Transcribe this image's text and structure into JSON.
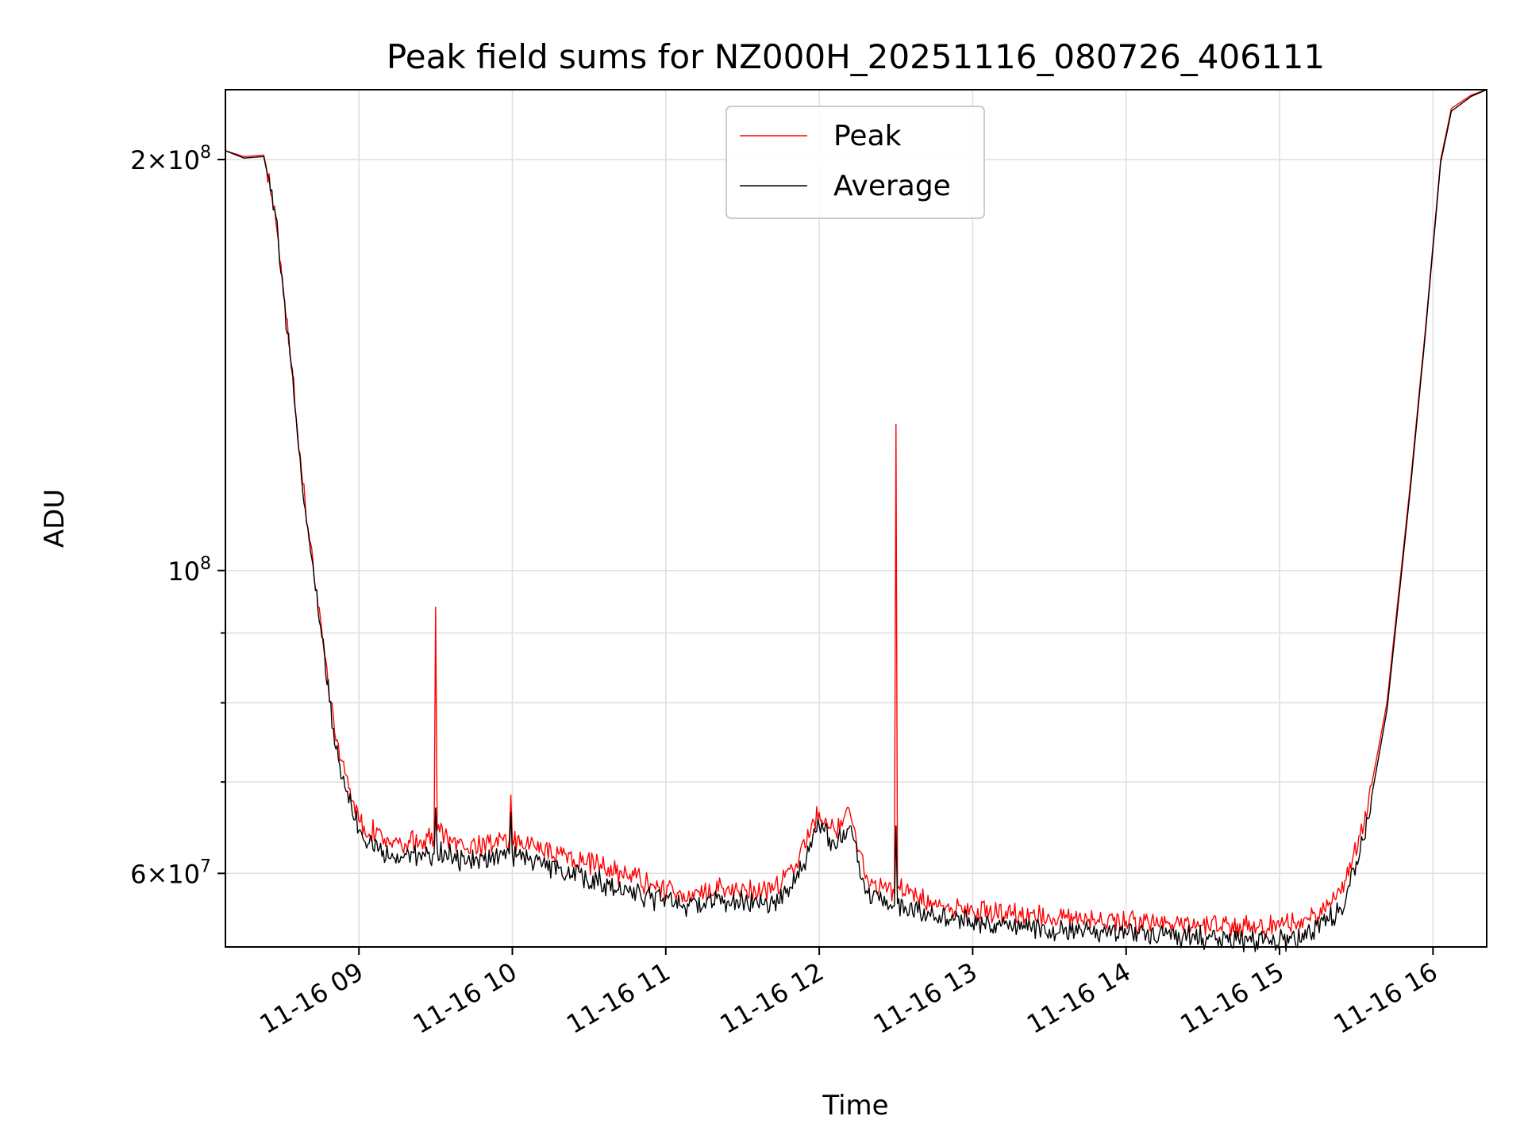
{
  "chart_data": {
    "type": "line",
    "title": "Peak field sums for NZ000H_20251116_080726_406111",
    "xlabel": "Time",
    "ylabel": "ADU",
    "yscale": "log",
    "ylim": [
      53000000,
      225000000
    ],
    "xlim_hours": [
      8.13,
      16.35
    ],
    "grid": true,
    "legend_position": "top-center",
    "x_ticks": [
      {
        "value": 9,
        "label": "11-16 09"
      },
      {
        "value": 10,
        "label": "11-16 10"
      },
      {
        "value": 11,
        "label": "11-16 11"
      },
      {
        "value": 12,
        "label": "11-16 12"
      },
      {
        "value": 13,
        "label": "11-16 13"
      },
      {
        "value": 14,
        "label": "11-16 14"
      },
      {
        "value": 15,
        "label": "11-16 15"
      },
      {
        "value": 16,
        "label": "11-16 16"
      }
    ],
    "y_major_ticks": [
      {
        "value": 60000000,
        "base": "6×10",
        "exp": "7"
      },
      {
        "value": 100000000,
        "base": "10",
        "exp": "8"
      },
      {
        "value": 200000000,
        "base": "2×10",
        "exp": "8"
      }
    ],
    "y_minor_ticks": [
      70000000,
      80000000,
      90000000
    ],
    "series": [
      {
        "name": "Peak",
        "color": "#ff0000",
        "points": [
          [
            8.13,
            203000000
          ],
          [
            8.25,
            201000000
          ],
          [
            8.38,
            201500000
          ],
          [
            8.45,
            185000000
          ],
          [
            8.55,
            145000000
          ],
          [
            8.65,
            112000000
          ],
          [
            8.75,
            92000000
          ],
          [
            8.85,
            75000000
          ],
          [
            9.0,
            65500000
          ],
          [
            9.2,
            63000000
          ],
          [
            9.49,
            63500000
          ],
          [
            9.5,
            94000000
          ],
          [
            9.51,
            64500000
          ],
          [
            9.7,
            62500000
          ],
          [
            9.98,
            63500000
          ],
          [
            9.99,
            68500000
          ],
          [
            10.0,
            63500000
          ],
          [
            10.3,
            62000000
          ],
          [
            10.6,
            60500000
          ],
          [
            10.9,
            59000000
          ],
          [
            11.1,
            58000000
          ],
          [
            11.4,
            58500000
          ],
          [
            11.7,
            58300000
          ],
          [
            11.85,
            61000000
          ],
          [
            12.0,
            66500000
          ],
          [
            12.1,
            64500000
          ],
          [
            12.2,
            66500000
          ],
          [
            12.3,
            59500000
          ],
          [
            12.49,
            58000000
          ],
          [
            12.5,
            128000000
          ],
          [
            12.51,
            58500000
          ],
          [
            12.8,
            56800000
          ],
          [
            13.0,
            56400000
          ],
          [
            13.5,
            55800000
          ],
          [
            14.0,
            55400000
          ],
          [
            14.5,
            55000000
          ],
          [
            15.0,
            54800000
          ],
          [
            15.2,
            55400000
          ],
          [
            15.4,
            58000000
          ],
          [
            15.55,
            65000000
          ],
          [
            15.7,
            80000000
          ],
          [
            15.85,
            115000000
          ],
          [
            15.95,
            150000000
          ],
          [
            16.05,
            200000000
          ],
          [
            16.12,
            218000000
          ],
          [
            16.25,
            223000000
          ],
          [
            16.35,
            225000000
          ]
        ]
      },
      {
        "name": "Average",
        "color": "#000000",
        "points": [
          [
            8.13,
            203000000
          ],
          [
            8.25,
            200500000
          ],
          [
            8.38,
            201000000
          ],
          [
            8.45,
            184000000
          ],
          [
            8.55,
            144000000
          ],
          [
            8.65,
            111000000
          ],
          [
            8.75,
            91000000
          ],
          [
            8.85,
            74000000
          ],
          [
            9.0,
            64500000
          ],
          [
            9.2,
            61500000
          ],
          [
            9.49,
            62000000
          ],
          [
            9.5,
            67000000
          ],
          [
            9.51,
            62500000
          ],
          [
            9.7,
            61000000
          ],
          [
            9.98,
            62000000
          ],
          [
            9.99,
            66500000
          ],
          [
            10.0,
            62000000
          ],
          [
            10.3,
            60500000
          ],
          [
            10.6,
            59000000
          ],
          [
            10.9,
            57500000
          ],
          [
            11.1,
            56800000
          ],
          [
            11.4,
            57200000
          ],
          [
            11.7,
            57000000
          ],
          [
            11.85,
            59500000
          ],
          [
            12.0,
            65000000
          ],
          [
            12.1,
            63000000
          ],
          [
            12.2,
            65000000
          ],
          [
            12.3,
            58000000
          ],
          [
            12.49,
            56800000
          ],
          [
            12.5,
            65000000
          ],
          [
            12.51,
            57000000
          ],
          [
            12.8,
            55600000
          ],
          [
            13.0,
            55200000
          ],
          [
            13.5,
            54600000
          ],
          [
            14.0,
            54200000
          ],
          [
            14.5,
            53800000
          ],
          [
            15.0,
            53600000
          ],
          [
            15.2,
            54200000
          ],
          [
            15.4,
            56500000
          ],
          [
            15.55,
            63500000
          ],
          [
            15.7,
            79000000
          ],
          [
            15.85,
            114000000
          ],
          [
            15.95,
            149000000
          ],
          [
            16.05,
            199000000
          ],
          [
            16.12,
            217000000
          ],
          [
            16.25,
            222500000
          ],
          [
            16.35,
            225000000
          ]
        ]
      }
    ]
  }
}
